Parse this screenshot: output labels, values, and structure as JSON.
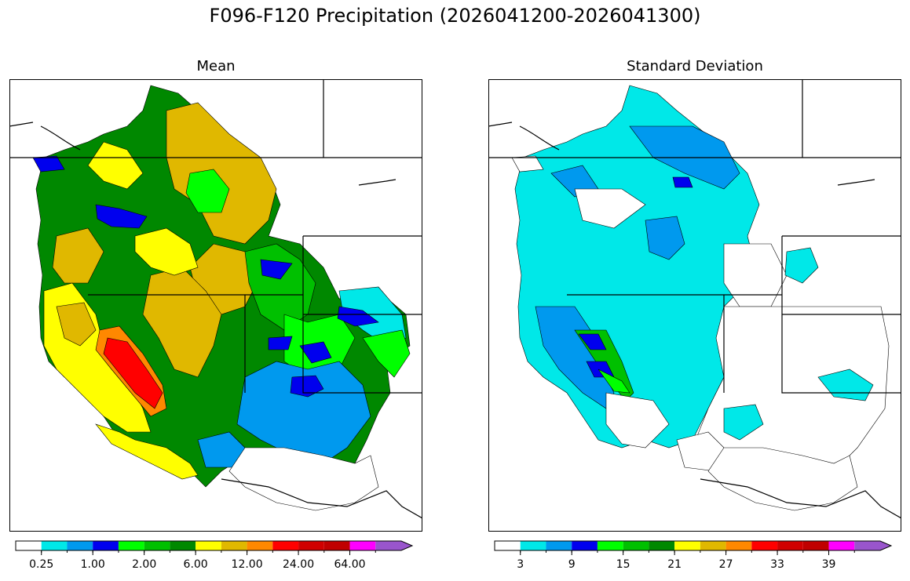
{
  "title": "F096-F120 Precipitation (2026041200-2026041300)",
  "panels": [
    {
      "id": "mean",
      "title": "Mean",
      "colorbar": {
        "colors": [
          "#ffffff",
          "#00e8e8",
          "#0099ee",
          "#0000ee",
          "#00ff00",
          "#00c000",
          "#008800",
          "#ffff00",
          "#e0b800",
          "#ff8800",
          "#ff0000",
          "#d00000",
          "#c00000",
          "#ff00ff",
          "#9955cc"
        ],
        "tick_labels": [
          "0.25",
          "1.00",
          "2.00",
          "6.00",
          "12.00",
          "24.00",
          "64.00"
        ],
        "extend": "max"
      }
    },
    {
      "id": "std",
      "title": "Standard Deviation",
      "colorbar": {
        "colors": [
          "#ffffff",
          "#00e8e8",
          "#0099ee",
          "#0000ee",
          "#00ff00",
          "#00c000",
          "#008800",
          "#ffff00",
          "#e0b800",
          "#ff8800",
          "#ff0000",
          "#d00000",
          "#c00000",
          "#ff00ff",
          "#9955cc"
        ],
        "tick_labels": [
          "3",
          "9",
          "15",
          "21",
          "27",
          "33",
          "39"
        ],
        "extend": "max"
      }
    }
  ]
}
